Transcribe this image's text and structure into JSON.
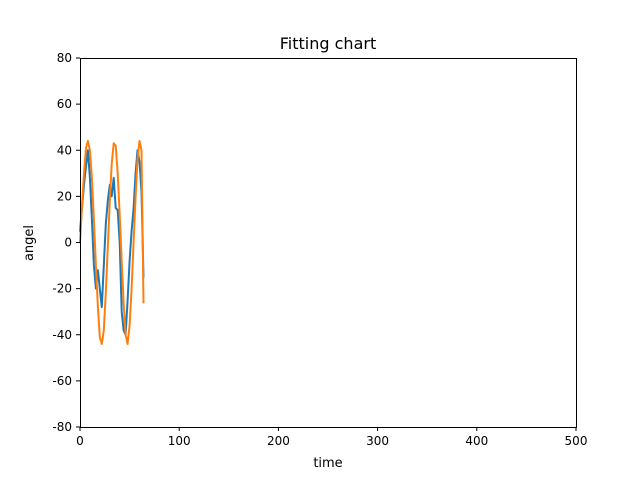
{
  "chart_data": {
    "type": "line",
    "title": "Fitting chart",
    "xlabel": "time",
    "ylabel": "angel",
    "xlim": [
      0,
      500
    ],
    "ylim": [
      -80,
      80
    ],
    "xticks": [
      0,
      100,
      200,
      300,
      400,
      500
    ],
    "yticks": [
      -80,
      -60,
      -40,
      -20,
      0,
      20,
      40,
      60,
      80
    ],
    "grid": false,
    "series": [
      {
        "color": "#1f77b4",
        "x": [
          0,
          2,
          4,
          6,
          8,
          10,
          12,
          14,
          16,
          18,
          20,
          22,
          24,
          26,
          28,
          30,
          32,
          34,
          36,
          38,
          40,
          42,
          44,
          46,
          48,
          50,
          52,
          54,
          56,
          58,
          60,
          62,
          64
        ],
        "y": [
          5,
          15,
          25,
          33,
          40,
          28,
          10,
          -10,
          -20,
          -12,
          -20,
          -28,
          -10,
          8,
          18,
          25,
          20,
          28,
          15,
          14,
          0,
          -30,
          -38,
          -40,
          -25,
          -8,
          5,
          15,
          30,
          40,
          35,
          22,
          -15
        ]
      },
      {
        "color": "#ff7f0e",
        "x": [
          0,
          2,
          4,
          6,
          8,
          10,
          12,
          14,
          16,
          18,
          20,
          22,
          24,
          26,
          28,
          30,
          32,
          34,
          36,
          38,
          40,
          42,
          44,
          46,
          48,
          50,
          52,
          54,
          56,
          58,
          60,
          62,
          64
        ],
        "y": [
          0,
          16,
          30,
          41,
          44,
          40,
          28,
          10,
          -10,
          -28,
          -41,
          -44,
          -38,
          -22,
          -2,
          18,
          34,
          43,
          42,
          30,
          12,
          -8,
          -26,
          -40,
          -44,
          -36,
          -20,
          0,
          20,
          36,
          44,
          40,
          -26
        ]
      }
    ]
  }
}
